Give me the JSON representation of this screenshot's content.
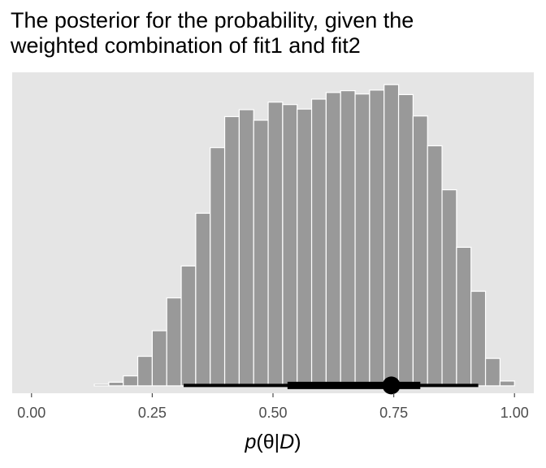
{
  "chart_data": {
    "type": "bar",
    "title_lines": [
      "The posterior for the probability, given the",
      "weighted combination of fit1 and fit2"
    ],
    "xlabel_parts": [
      "p",
      "(θ|",
      "D",
      ")"
    ],
    "xlim": [
      -0.04,
      1.04
    ],
    "ylim": [
      0,
      1.04
    ],
    "x_ticks": [
      0.0,
      0.25,
      0.5,
      0.75,
      1.0
    ],
    "x_tick_labels": [
      "0.00",
      "0.25",
      "0.50",
      "0.75",
      "1.00"
    ],
    "bin_width": 0.03,
    "bin_centers": [
      0.145,
      0.175,
      0.205,
      0.235,
      0.265,
      0.295,
      0.325,
      0.355,
      0.385,
      0.415,
      0.445,
      0.475,
      0.505,
      0.535,
      0.565,
      0.595,
      0.625,
      0.655,
      0.685,
      0.715,
      0.745,
      0.775,
      0.805,
      0.835,
      0.865,
      0.895,
      0.925,
      0.955,
      0.985
    ],
    "values": [
      0.005,
      0.012,
      0.033,
      0.098,
      0.183,
      0.292,
      0.398,
      0.573,
      0.791,
      0.894,
      0.917,
      0.882,
      0.942,
      0.934,
      0.919,
      0.952,
      0.974,
      0.98,
      0.969,
      0.982,
      1.0,
      0.967,
      0.896,
      0.797,
      0.651,
      0.46,
      0.314,
      0.091,
      0.016
    ],
    "interval": {
      "point": 0.745,
      "inner": [
        0.53,
        0.805
      ],
      "outer": [
        0.315,
        0.925
      ]
    },
    "colors": {
      "panel": "#e5e5e5",
      "bar": "#999999",
      "bar_edge": "#ffffff",
      "interval": "#000000",
      "tick": "#4d4d4d"
    }
  }
}
